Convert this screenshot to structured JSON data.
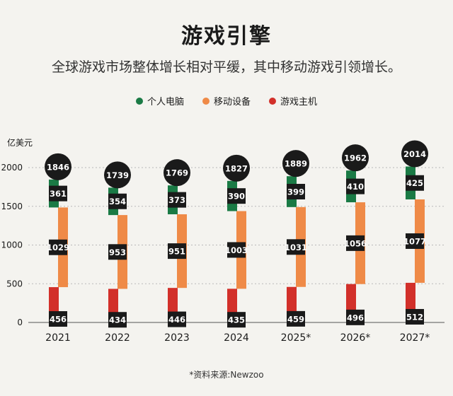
{
  "title": "游戏引擎",
  "subtitle": "全球游戏市场整体增长相对平缓，其中移动游戏引领增长。",
  "source": "*资料来源:Newzoo",
  "colors": {
    "pc": "#1a7a45",
    "mobile": "#ef8a47",
    "console": "#d2302a",
    "label_bg": "#1a1a1a",
    "label_text": "#ffffff"
  },
  "chart_data": {
    "type": "bar",
    "stacked": true,
    "ylabel": "亿美元",
    "ylim": [
      0,
      2000
    ],
    "yticks": [
      "0",
      "500",
      "1000",
      "1500",
      "2000"
    ],
    "categories": [
      "2021",
      "2022",
      "2023",
      "2024",
      "2025*",
      "2026*",
      "2027*"
    ],
    "totals": [
      "1846",
      "1739",
      "1769",
      "1827",
      "1889",
      "1962",
      "2014"
    ],
    "series": [
      {
        "name": "游戏主机",
        "color": "#d2302a",
        "values": [
          456,
          434,
          446,
          435,
          459,
          496,
          512
        ]
      },
      {
        "name": "移动设备",
        "color": "#ef8a47",
        "values": [
          1029,
          953,
          951,
          1003,
          1031,
          1056,
          1077
        ]
      },
      {
        "name": "个人电脑",
        "color": "#1a7a45",
        "values": [
          361,
          354,
          373,
          390,
          399,
          410,
          425
        ]
      }
    ],
    "legend_order": [
      "个人电脑",
      "移动设备",
      "游戏主机"
    ],
    "legend": "top-center",
    "grid": true
  }
}
